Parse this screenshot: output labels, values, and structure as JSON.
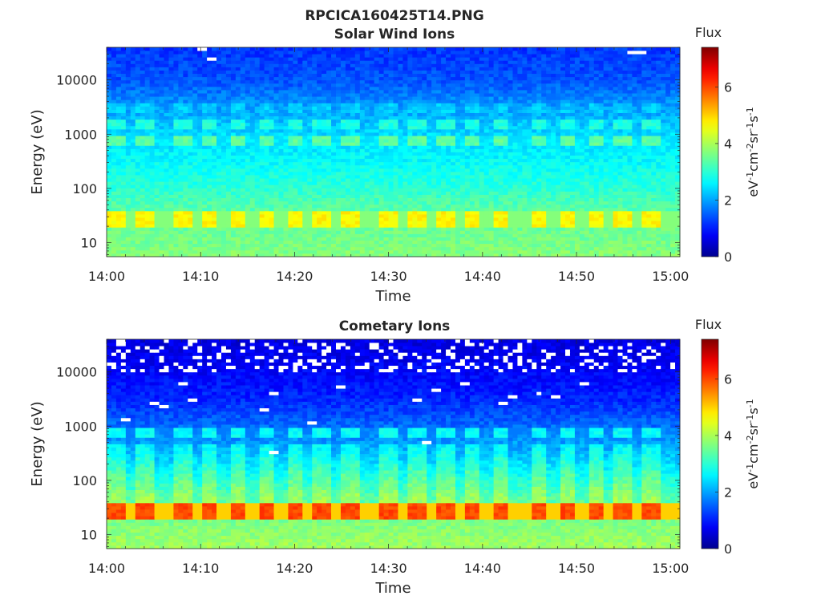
{
  "figure_title": "RPCICA160425T14.PNG",
  "colors": {
    "colormap": [
      "#00008f",
      "#0000ff",
      "#00ffff",
      "#ffff00",
      "#ff0000",
      "#800000"
    ],
    "empty_bin": "#ffffff",
    "text": "#262626"
  },
  "chart_data": [
    {
      "type": "heatmap",
      "title": "Solar Wind Ions",
      "xlabel": "Time",
      "ylabel": "Energy (eV)",
      "y_scale": "log",
      "xlim": [
        "14:00",
        "15:01"
      ],
      "ylim": [
        5.5,
        40000
      ],
      "x_ticks": [
        "14:00",
        "14:10",
        "14:20",
        "14:30",
        "14:40",
        "14:50",
        "15:00"
      ],
      "y_ticks": [
        "10",
        "100",
        "1000",
        "10000"
      ],
      "colorbar": {
        "title": "Flux",
        "label": "eV-1cm-2sr-1s-1",
        "range": [
          0,
          7.4
        ],
        "ticks": [
          "0",
          "2",
          "4",
          "6"
        ]
      },
      "background_flux_profile": {
        "energy_eV": [
          6,
          10,
          20,
          50,
          100,
          300,
          1000,
          3000,
          10000,
          40000
        ],
        "flux": [
          3.7,
          3.6,
          3.5,
          3.3,
          3.0,
          2.7,
          2.4,
          2.0,
          1.4,
          1.2
        ]
      },
      "features": [
        {
          "label": "low energy band",
          "energy_eV": [
            20,
            40
          ],
          "flux": 4.7
        },
        {
          "label": "band",
          "energy_eV": [
            600,
            900
          ],
          "flux": 3.4
        },
        {
          "label": "band",
          "energy_eV": [
            1300,
            2000
          ],
          "flux": 2.9
        },
        {
          "label": "band",
          "energy_eV": [
            2600,
            3800
          ],
          "flux": 2.3
        }
      ],
      "pulse_times": [
        "14:01",
        "14:04",
        "14:08",
        "14:11",
        "14:14",
        "14:17",
        "14:20",
        "14:23",
        "14:26",
        "14:30",
        "14:33",
        "14:36",
        "14:39",
        "14:42",
        "14:46",
        "14:49",
        "14:52",
        "14:55",
        "14:58"
      ],
      "empty_bins": [
        {
          "time": "14:10",
          "energy_eV": 38000
        },
        {
          "time": "14:11",
          "energy_eV": 26000
        },
        {
          "time": "14:56",
          "energy_eV": 31000
        },
        {
          "time": "14:57",
          "energy_eV": 31000
        }
      ]
    },
    {
      "type": "heatmap",
      "title": "Cometary Ions",
      "xlabel": "Time",
      "ylabel": "Energy (eV)",
      "y_scale": "log",
      "xlim": [
        "14:00",
        "15:01"
      ],
      "ylim": [
        5.5,
        40000
      ],
      "x_ticks": [
        "14:00",
        "14:10",
        "14:20",
        "14:30",
        "14:40",
        "14:50",
        "15:00"
      ],
      "y_ticks": [
        "10",
        "100",
        "1000",
        "10000"
      ],
      "colorbar": {
        "title": "Flux",
        "label": "eV-1cm-2sr-1s-1",
        "range": [
          0,
          7.4
        ],
        "ticks": [
          "0",
          "2",
          "4",
          "6"
        ]
      },
      "background_flux_profile": {
        "energy_eV": [
          6,
          10,
          20,
          50,
          100,
          300,
          1000,
          3000,
          10000,
          40000
        ],
        "flux": [
          3.9,
          3.8,
          3.6,
          3.3,
          2.9,
          2.2,
          1.6,
          1.1,
          0.8,
          0.6
        ]
      },
      "features": [
        {
          "label": "low energy band",
          "energy_eV": [
            20,
            40
          ],
          "flux": 6.0
        },
        {
          "label": "band",
          "energy_eV": [
            600,
            900
          ],
          "flux": 2.7
        }
      ],
      "pulse_times": [
        "14:01",
        "14:04",
        "14:08",
        "14:11",
        "14:14",
        "14:17",
        "14:20",
        "14:23",
        "14:26",
        "14:30",
        "14:33",
        "14:36",
        "14:39",
        "14:42",
        "14:46",
        "14:49",
        "14:52",
        "14:55",
        "14:58"
      ],
      "empty_bins_above_eV": 10000,
      "empty_bins": [
        {
          "time": "14:02",
          "energy_eV": 1400
        },
        {
          "time": "14:05",
          "energy_eV": 2800
        },
        {
          "time": "14:06",
          "energy_eV": 2300
        },
        {
          "time": "14:08",
          "energy_eV": 6400
        },
        {
          "time": "14:09",
          "energy_eV": 3000
        },
        {
          "time": "14:17",
          "energy_eV": 2100
        },
        {
          "time": "14:18",
          "energy_eV": 350
        },
        {
          "time": "14:18",
          "energy_eV": 4000
        },
        {
          "time": "14:22",
          "energy_eV": 1200
        },
        {
          "time": "14:25",
          "energy_eV": 5500
        },
        {
          "time": "14:33",
          "energy_eV": 3000
        },
        {
          "time": "14:34",
          "energy_eV": 480
        },
        {
          "time": "14:35",
          "energy_eV": 4800
        },
        {
          "time": "14:38",
          "energy_eV": 6300
        },
        {
          "time": "14:42",
          "energy_eV": 2800
        },
        {
          "time": "14:43",
          "energy_eV": 3400
        },
        {
          "time": "14:46",
          "energy_eV": 4000
        },
        {
          "time": "14:48",
          "energy_eV": 3400
        },
        {
          "time": "14:51",
          "energy_eV": 6300
        }
      ]
    }
  ]
}
